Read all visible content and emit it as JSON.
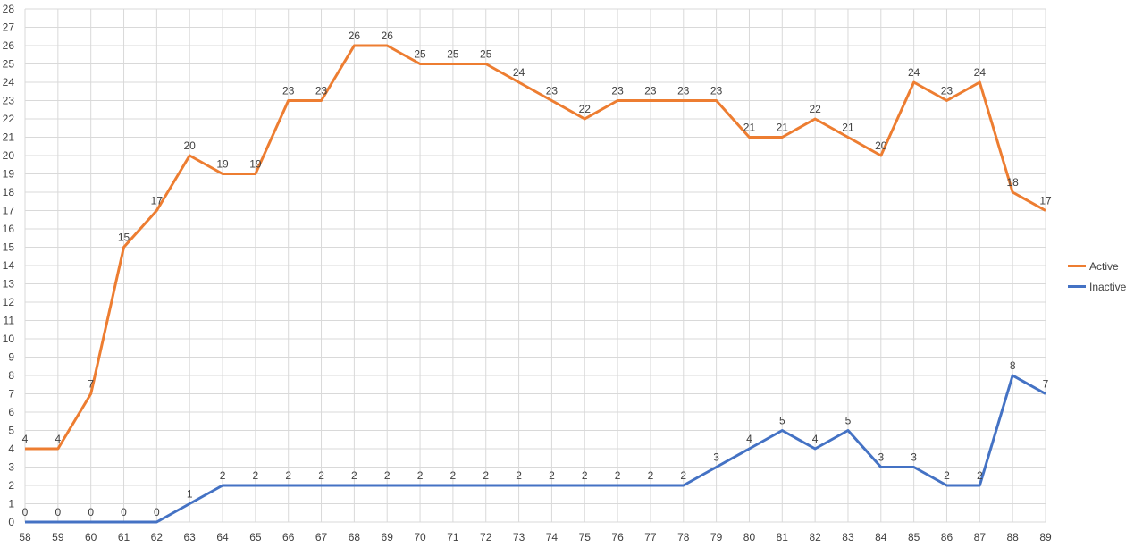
{
  "chart_data": {
    "type": "line",
    "categories": [
      "58",
      "59",
      "60",
      "61",
      "62",
      "63",
      "64",
      "65",
      "66",
      "67",
      "68",
      "69",
      "70",
      "71",
      "72",
      "73",
      "74",
      "75",
      "76",
      "77",
      "78",
      "79",
      "80",
      "81",
      "82",
      "83",
      "84",
      "85",
      "86",
      "87",
      "88",
      "89"
    ],
    "series": [
      {
        "name": "Active",
        "color": "#ED7D31",
        "values": [
          4,
          4,
          7,
          15,
          17,
          20,
          19,
          19,
          23,
          23,
          26,
          26,
          25,
          25,
          25,
          24,
          23,
          22,
          23,
          23,
          23,
          23,
          21,
          21,
          22,
          21,
          20,
          24,
          23,
          24,
          18,
          17
        ]
      },
      {
        "name": "Inactive",
        "color": "#4472C4",
        "values": [
          0,
          0,
          0,
          0,
          0,
          1,
          2,
          2,
          2,
          2,
          2,
          2,
          2,
          2,
          2,
          2,
          2,
          2,
          2,
          2,
          2,
          3,
          4,
          5,
          4,
          5,
          3,
          3,
          2,
          2,
          8,
          7
        ]
      }
    ],
    "ylim": [
      0,
      28
    ],
    "ytick_step": 1,
    "grid": true,
    "data_labels": true,
    "legend": {
      "position": "right"
    },
    "title": "",
    "xlabel": "",
    "ylabel": ""
  }
}
